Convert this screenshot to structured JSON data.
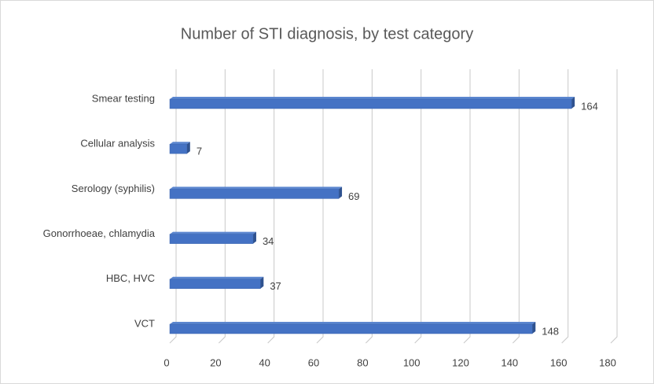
{
  "chart_data": {
    "type": "bar",
    "orientation": "horizontal",
    "title": "Number of STI diagnosis, by test category",
    "categories": [
      "Smear testing",
      "Cellular analysis",
      "Serology (syphilis)",
      "Gonorrhoeae, chlamydia",
      "HBC, HVC",
      "VCT"
    ],
    "values": [
      164,
      7,
      69,
      34,
      37,
      148
    ],
    "color": "#4472c4",
    "xlim": [
      0,
      180
    ],
    "xticks": [
      0,
      20,
      40,
      60,
      80,
      100,
      120,
      140,
      160,
      180
    ],
    "grid": true
  }
}
